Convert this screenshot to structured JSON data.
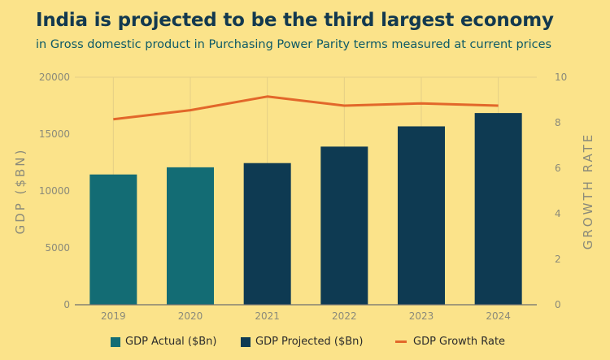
{
  "title": "India is projected to be the third largest economy",
  "subtitle": "in Gross domestic product in Purchasing Power Parity terms measured at current prices",
  "colors": {
    "background": "#fbe38a",
    "actual": "#136c74",
    "projected": "#0e3a52",
    "growth": "#e2672a",
    "grid": "#e4cf85"
  },
  "chart_data": {
    "type": "bar",
    "categories": [
      "2019",
      "2020",
      "2021",
      "2022",
      "2023",
      "2024"
    ],
    "series": [
      {
        "name": "GDP Actual ($Bn)",
        "type": "bar",
        "axis": "left",
        "values": [
          11450,
          12080,
          null,
          null,
          null,
          null
        ]
      },
      {
        "name": "GDP Projected ($Bn)",
        "type": "bar",
        "axis": "left",
        "values": [
          null,
          null,
          12450,
          13900,
          15680,
          16850
        ]
      },
      {
        "name": "GDP Growth Rate",
        "type": "line",
        "axis": "right",
        "values": [
          8.15,
          8.55,
          9.15,
          8.75,
          8.85,
          8.75
        ]
      }
    ],
    "ylabel": "GDP ($BN)",
    "y2label": "GROWTH RATE",
    "ylim": [
      0,
      20000
    ],
    "y2lim": [
      0,
      10
    ],
    "yticks": [
      "0",
      "5000",
      "10000",
      "15000",
      "20000"
    ],
    "y2ticks": [
      "0",
      "2",
      "4",
      "6",
      "8",
      "10"
    ],
    "grid": "vertical",
    "legend_position": "bottom"
  },
  "legend": [
    {
      "label": "GDP Actual ($Bn)",
      "kind": "box",
      "color": "#136c74"
    },
    {
      "label": "GDP Projected ($Bn)",
      "kind": "box",
      "color": "#0e3a52"
    },
    {
      "label": "GDP Growth Rate",
      "kind": "line",
      "color": "#e2672a"
    }
  ]
}
